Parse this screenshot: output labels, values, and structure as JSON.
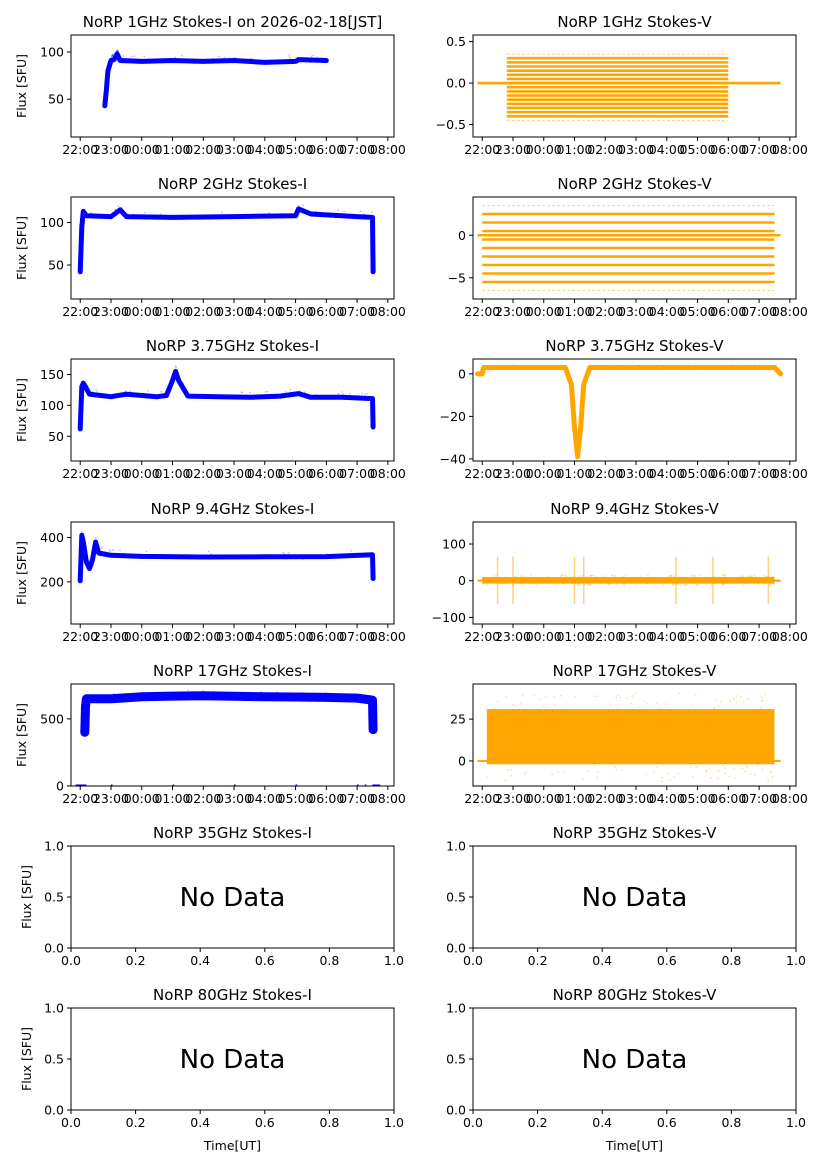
{
  "figure": {
    "date_label": "2026-02-18[JST]",
    "ylabel": "Flux [SFU]",
    "xlabel": "Time[UT]",
    "no_data_text": "No Data",
    "colors": {
      "stokes_i": "#0000ff",
      "stokes_v": "#ffa500",
      "axis": "#000000"
    }
  },
  "chart_data": [
    {
      "id": "1ghz-i",
      "type": "scatter",
      "title": "NoRP 1GHz Stokes-I on 2026-02-18[JST]",
      "ylabel": "Flux [SFU]",
      "xlabel": "",
      "has_data": true,
      "stokes": "I",
      "x_ticklabels": [
        "22:00",
        "23:00",
        "00:00",
        "01:00",
        "02:00",
        "03:00",
        "04:00",
        "05:00",
        "06:00",
        "07:00",
        "08:00"
      ],
      "xlim_hours": [
        21.7,
        32.2
      ],
      "ylim": [
        10,
        118
      ],
      "yticks": [
        50,
        100
      ],
      "series": [
        {
          "name": "Stokes-I",
          "x_hours": [
            22.8,
            22.85,
            22.9,
            23.0,
            23.1,
            23.2,
            23.3,
            24.0,
            25.0,
            26.0,
            27.0,
            28.0,
            29.0,
            29.1,
            30.0
          ],
          "y": [
            43,
            60,
            80,
            91,
            92,
            98,
            91,
            90,
            91,
            90,
            91,
            89,
            90,
            92,
            91
          ]
        }
      ]
    },
    {
      "id": "1ghz-v",
      "type": "scatter",
      "title": "NoRP 1GHz Stokes-V",
      "ylabel": "",
      "xlabel": "",
      "has_data": true,
      "stokes": "V",
      "x_ticklabels": [
        "22:00",
        "23:00",
        "00:00",
        "01:00",
        "02:00",
        "03:00",
        "04:00",
        "05:00",
        "06:00",
        "07:00",
        "08:00"
      ],
      "xlim_hours": [
        21.7,
        32.2
      ],
      "ylim": [
        -0.65,
        0.58
      ],
      "yticks": [
        -0.5,
        0.0,
        0.5
      ],
      "ytick_labels": [
        "−0.5",
        "0.0",
        "0.5"
      ],
      "series": [
        {
          "name": "Stokes-V",
          "pattern": "quantized-levels",
          "levels": [
            -0.45,
            -0.4,
            -0.35,
            -0.3,
            -0.25,
            -0.2,
            -0.15,
            -0.1,
            -0.05,
            0.0,
            0.05,
            0.1,
            0.15,
            0.2,
            0.25,
            0.3,
            0.35
          ],
          "active_range_hours": [
            22.8,
            30.0
          ],
          "zero_line_range_hours": [
            21.85,
            31.7
          ]
        }
      ]
    },
    {
      "id": "2ghz-i",
      "type": "scatter",
      "title": "NoRP 2GHz Stokes-I",
      "ylabel": "Flux [SFU]",
      "xlabel": "",
      "has_data": true,
      "stokes": "I",
      "x_ticklabels": [
        "22:00",
        "23:00",
        "00:00",
        "01:00",
        "02:00",
        "03:00",
        "04:00",
        "05:00",
        "06:00",
        "07:00",
        "08:00"
      ],
      "xlim_hours": [
        21.7,
        32.2
      ],
      "ylim": [
        10,
        130
      ],
      "yticks": [
        50,
        100
      ],
      "series": [
        {
          "name": "Stokes-I",
          "x_hours": [
            22.0,
            22.05,
            22.1,
            22.2,
            23.0,
            23.3,
            23.5,
            25.0,
            27.0,
            29.0,
            29.1,
            29.5,
            31.0,
            31.5,
            31.52
          ],
          "y": [
            42,
            95,
            113,
            108,
            107,
            115,
            107,
            106,
            107,
            108,
            116,
            110,
            107,
            106,
            42
          ]
        }
      ]
    },
    {
      "id": "2ghz-v",
      "type": "scatter",
      "title": "NoRP 2GHz Stokes-V",
      "ylabel": "",
      "xlabel": "",
      "has_data": true,
      "stokes": "V",
      "x_ticklabels": [
        "22:00",
        "23:00",
        "00:00",
        "01:00",
        "02:00",
        "03:00",
        "04:00",
        "05:00",
        "06:00",
        "07:00",
        "08:00"
      ],
      "xlim_hours": [
        21.7,
        32.2
      ],
      "ylim": [
        -7.5,
        4.5
      ],
      "yticks": [
        -5,
        0
      ],
      "ytick_labels": [
        "−5",
        "0"
      ],
      "series": [
        {
          "name": "Stokes-V",
          "pattern": "quantized-levels",
          "levels": [
            -6.5,
            -5.5,
            -4.5,
            -3.5,
            -2.5,
            -1.5,
            -0.5,
            0.5,
            1.5,
            2.5,
            3.5
          ],
          "active_range_hours": [
            22.0,
            31.5
          ],
          "zero_line_range_hours": [
            21.85,
            31.7
          ]
        }
      ]
    },
    {
      "id": "375ghz-i",
      "type": "scatter",
      "title": "NoRP 3.75GHz Stokes-I",
      "ylabel": "Flux [SFU]",
      "xlabel": "",
      "has_data": true,
      "stokes": "I",
      "x_ticklabels": [
        "22:00",
        "23:00",
        "00:00",
        "01:00",
        "02:00",
        "03:00",
        "04:00",
        "05:00",
        "06:00",
        "07:00",
        "08:00"
      ],
      "xlim_hours": [
        21.7,
        32.2
      ],
      "ylim": [
        10,
        175
      ],
      "yticks": [
        50,
        100,
        150
      ],
      "series": [
        {
          "name": "Stokes-I",
          "x_hours": [
            22.0,
            22.05,
            22.1,
            22.3,
            22.5,
            23.0,
            23.5,
            24.5,
            24.8,
            25.0,
            25.1,
            25.2,
            25.5,
            26.5,
            27.5,
            28.5,
            29.1,
            29.5,
            30.5,
            31.5,
            31.52
          ],
          "y": [
            62,
            130,
            136,
            118,
            117,
            114,
            118,
            114,
            116,
            140,
            155,
            140,
            115,
            114,
            113,
            115,
            119,
            113,
            113,
            111,
            65
          ]
        }
      ]
    },
    {
      "id": "375ghz-v",
      "type": "scatter",
      "title": "NoRP 3.75GHz Stokes-V",
      "ylabel": "",
      "xlabel": "",
      "has_data": true,
      "stokes": "V",
      "x_ticklabels": [
        "22:00",
        "23:00",
        "00:00",
        "01:00",
        "02:00",
        "03:00",
        "04:00",
        "05:00",
        "06:00",
        "07:00",
        "08:00"
      ],
      "xlim_hours": [
        21.7,
        32.2
      ],
      "ylim": [
        -41,
        7
      ],
      "yticks": [
        -40,
        -20,
        0
      ],
      "ytick_labels": [
        "−40",
        "−20",
        "0"
      ],
      "series": [
        {
          "name": "Stokes-V",
          "x_hours": [
            21.85,
            22.0,
            22.05,
            24.7,
            24.9,
            25.0,
            25.1,
            25.2,
            25.3,
            25.5,
            27.0,
            29.0,
            31.5,
            31.7
          ],
          "y": [
            0,
            0,
            3,
            3,
            -5,
            -25,
            -39,
            -25,
            -5,
            3,
            3,
            3,
            3,
            0
          ]
        }
      ]
    },
    {
      "id": "94ghz-i",
      "type": "scatter",
      "title": "NoRP 9.4GHz Stokes-I",
      "ylabel": "Flux [SFU]",
      "xlabel": "",
      "has_data": true,
      "stokes": "I",
      "x_ticklabels": [
        "22:00",
        "23:00",
        "00:00",
        "01:00",
        "02:00",
        "03:00",
        "04:00",
        "05:00",
        "06:00",
        "07:00",
        "08:00"
      ],
      "xlim_hours": [
        21.7,
        32.2
      ],
      "ylim": [
        10,
        470
      ],
      "yticks": [
        200,
        400
      ],
      "series": [
        {
          "name": "Stokes-I",
          "x_hours": [
            22.0,
            22.05,
            22.1,
            22.2,
            22.3,
            22.4,
            22.5,
            22.6,
            23.0,
            24.0,
            26.0,
            28.0,
            30.0,
            31.5,
            31.52
          ],
          "y": [
            205,
            410,
            380,
            290,
            260,
            300,
            380,
            330,
            320,
            315,
            312,
            313,
            314,
            322,
            215
          ]
        }
      ]
    },
    {
      "id": "94ghz-v",
      "type": "scatter",
      "title": "NoRP 9.4GHz Stokes-V",
      "ylabel": "",
      "xlabel": "",
      "has_data": true,
      "stokes": "V",
      "x_ticklabels": [
        "22:00",
        "23:00",
        "00:00",
        "01:00",
        "02:00",
        "03:00",
        "04:00",
        "05:00",
        "06:00",
        "07:00",
        "08:00"
      ],
      "xlim_hours": [
        21.7,
        32.2
      ],
      "ylim": [
        -118,
        160
      ],
      "yticks": [
        -100,
        0,
        100
      ],
      "ytick_labels": [
        "−100",
        "0",
        "100"
      ],
      "series": [
        {
          "name": "Stokes-V",
          "pattern": "noise-band",
          "center": 2,
          "band": [
            -8,
            10
          ],
          "active_range_hours": [
            22.0,
            31.5
          ],
          "bursts_hours": [
            22.5,
            23.0,
            25.0,
            25.3,
            28.3,
            29.5,
            31.3
          ]
        }
      ]
    },
    {
      "id": "17ghz-i",
      "type": "scatter",
      "title": "NoRP 17GHz Stokes-I",
      "ylabel": "Flux [SFU]",
      "xlabel": "",
      "has_data": true,
      "stokes": "I",
      "x_ticklabels": [
        "22:00",
        "23:00",
        "00:00",
        "01:00",
        "02:00",
        "03:00",
        "04:00",
        "05:00",
        "06:00",
        "07:00",
        "08:00"
      ],
      "xlim_hours": [
        21.7,
        32.2
      ],
      "ylim": [
        0,
        760
      ],
      "yticks": [
        0,
        500
      ],
      "series": [
        {
          "name": "Stokes-I",
          "x_hours": [
            22.15,
            22.17,
            22.2,
            23.0,
            24.0,
            25.0,
            26.0,
            27.0,
            28.0,
            29.0,
            30.0,
            31.0,
            31.5,
            31.52
          ],
          "y": [
            400,
            590,
            650,
            650,
            665,
            670,
            672,
            668,
            665,
            663,
            660,
            655,
            640,
            420
          ]
        }
      ]
    },
    {
      "id": "17ghz-v",
      "type": "scatter",
      "title": "NoRP 17GHz Stokes-V",
      "ylabel": "",
      "xlabel": "",
      "has_data": true,
      "stokes": "V",
      "x_ticklabels": [
        "22:00",
        "23:00",
        "00:00",
        "01:00",
        "02:00",
        "03:00",
        "04:00",
        "05:00",
        "06:00",
        "07:00",
        "08:00"
      ],
      "xlim_hours": [
        21.7,
        32.2
      ],
      "ylim": [
        -15,
        46
      ],
      "yticks": [
        0,
        25
      ],
      "series": [
        {
          "name": "Stokes-V",
          "pattern": "noise-band",
          "center": 14,
          "band": [
            -2,
            31
          ],
          "active_range_hours": [
            22.15,
            31.5
          ]
        }
      ]
    },
    {
      "id": "35ghz-i",
      "type": "scatter",
      "title": "NoRP 35GHz Stokes-I",
      "ylabel": "Flux [SFU]",
      "xlabel": "",
      "has_data": false,
      "stokes": "I",
      "xlim": [
        0,
        1
      ],
      "ylim": [
        0,
        1
      ],
      "xticks": [
        "0.0",
        "0.2",
        "0.4",
        "0.6",
        "0.8",
        "1.0"
      ],
      "yticks_labels": [
        "0.0",
        "0.5",
        "1.0"
      ],
      "annotation": "No Data"
    },
    {
      "id": "35ghz-v",
      "type": "scatter",
      "title": "NoRP 35GHz Stokes-V",
      "ylabel": "",
      "xlabel": "",
      "has_data": false,
      "stokes": "V",
      "xlim": [
        0,
        1
      ],
      "ylim": [
        0,
        1
      ],
      "xticks": [
        "0.0",
        "0.2",
        "0.4",
        "0.6",
        "0.8",
        "1.0"
      ],
      "yticks_labels": [
        "0.0",
        "0.5",
        "1.0"
      ],
      "annotation": "No Data"
    },
    {
      "id": "80ghz-i",
      "type": "scatter",
      "title": "NoRP 80GHz Stokes-I",
      "ylabel": "Flux [SFU]",
      "xlabel": "Time[UT]",
      "has_data": false,
      "stokes": "I",
      "xlim": [
        0,
        1
      ],
      "ylim": [
        0,
        1
      ],
      "xticks": [
        "0.0",
        "0.2",
        "0.4",
        "0.6",
        "0.8",
        "1.0"
      ],
      "yticks_labels": [
        "0.0",
        "0.5",
        "1.0"
      ],
      "annotation": "No Data"
    },
    {
      "id": "80ghz-v",
      "type": "scatter",
      "title": "NoRP 80GHz Stokes-V",
      "ylabel": "",
      "xlabel": "Time[UT]",
      "has_data": false,
      "stokes": "V",
      "xlim": [
        0,
        1
      ],
      "ylim": [
        0,
        1
      ],
      "xticks": [
        "0.0",
        "0.2",
        "0.4",
        "0.6",
        "0.8",
        "1.0"
      ],
      "yticks_labels": [
        "0.0",
        "0.5",
        "1.0"
      ],
      "annotation": "No Data"
    }
  ]
}
